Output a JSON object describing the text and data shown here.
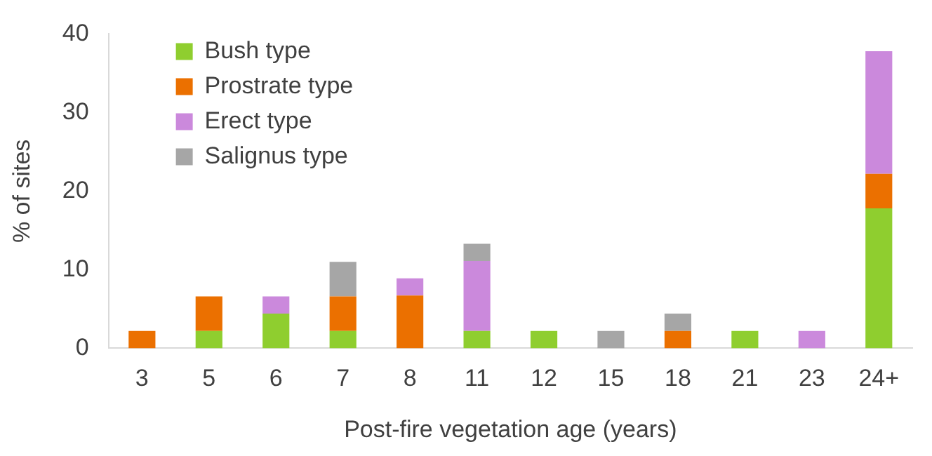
{
  "chart_data": {
    "type": "bar",
    "stacked": true,
    "xlabel": "Post-fire vegetation age (years)",
    "ylabel": "% of sites",
    "categories": [
      "3",
      "5",
      "6",
      "7",
      "8",
      "11",
      "12",
      "15",
      "18",
      "21",
      "23",
      "24+"
    ],
    "series": [
      {
        "name": "Bush type",
        "color": "#8fce2f",
        "values": [
          null,
          2.2,
          4.4,
          2.2,
          null,
          2.2,
          2.2,
          null,
          null,
          2.2,
          null,
          17.8
        ]
      },
      {
        "name": "Prostrate type",
        "color": "#eb7000",
        "values": [
          2.2,
          4.4,
          null,
          4.4,
          6.7,
          null,
          null,
          null,
          2.2,
          null,
          null,
          4.4
        ]
      },
      {
        "name": "Erect type",
        "color": "#cb89dc",
        "values": [
          null,
          null,
          2.2,
          null,
          2.2,
          8.9,
          null,
          null,
          null,
          null,
          2.2,
          15.6
        ]
      },
      {
        "name": "Salignus type",
        "color": "#a6a6a6",
        "values": [
          null,
          null,
          null,
          4.4,
          null,
          2.2,
          null,
          2.2,
          2.2,
          null,
          null,
          null
        ]
      }
    ],
    "ylim": [
      0,
      40
    ],
    "yticks": [
      0,
      10,
      20,
      30,
      40
    ],
    "grid": false,
    "legend": "top left"
  }
}
